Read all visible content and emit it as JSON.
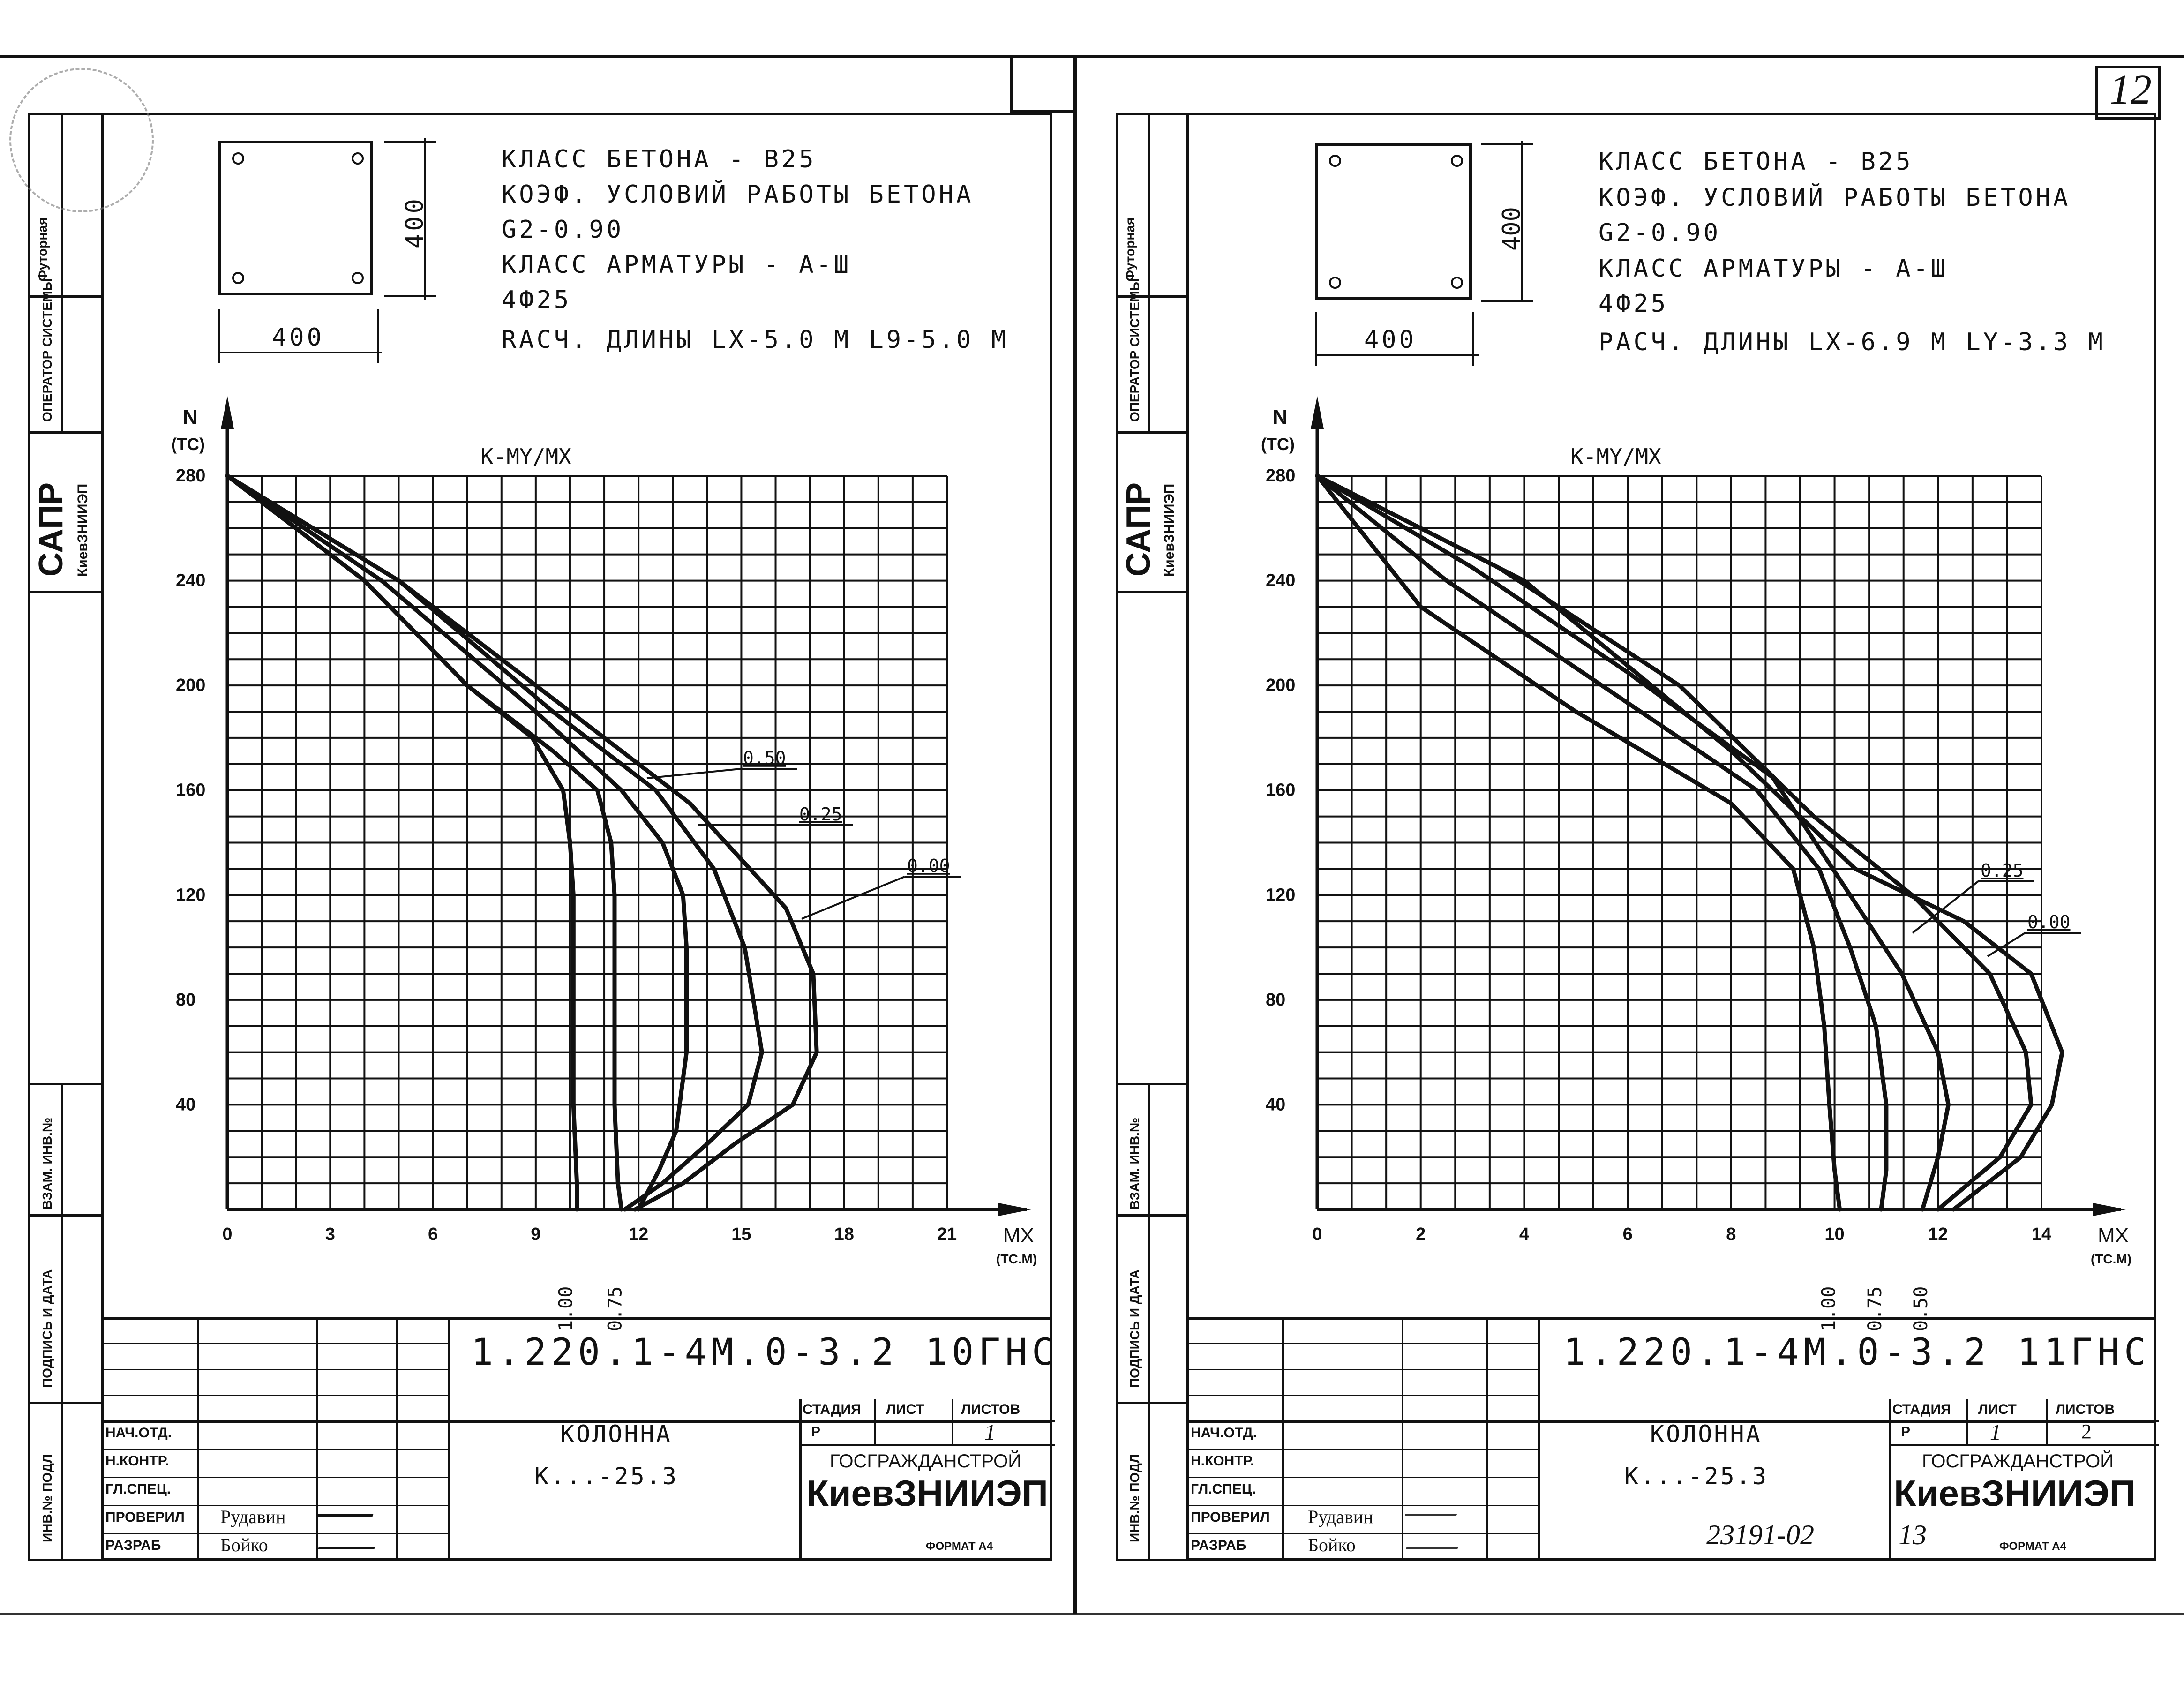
{
  "page_number": "12",
  "footer_number": "23191-02",
  "footer_page": "13",
  "format_label": "ФОРМАТ А4",
  "side_labels": {
    "futorny": "Футорная",
    "operator": "ОПЕРАТОР СИСТЕМЫ",
    "sapr": "САПР",
    "sapr_org": "КиевЗНИИЭП",
    "vzam": "ВЗАМ. ИНВ.№",
    "podpis": "ПОДПИСЬ И ДАТА",
    "inv": "ИНВ.№ ПОДЛ"
  },
  "sheets": [
    {
      "section_width": "400",
      "section_height": "400",
      "spec_lines": [
        "КЛАСС БЕТОНА - В25",
        "КОЭФ. УСЛОВИЙ РАБОТЫ БЕТОНА",
        "G2-0.90",
        "КЛАСС АРМАТУРЫ - А-Ш",
        "4Ф25",
        "RАСЧ. ДЛИНЫ  LX-5.0 M  L9-5.0 M"
      ],
      "chart_data": {
        "type": "line",
        "title": "K-MY/MX",
        "ylabel": "N",
        "yunit": "(ТС)",
        "xlabel": "MX",
        "xunit": "(ТС.М)",
        "xlim": [
          0,
          21
        ],
        "ylim": [
          0,
          280
        ],
        "xticks": [
          "0",
          "3",
          "6",
          "9",
          "12",
          "15",
          "18",
          "21"
        ],
        "yticks": [
          "40",
          "80",
          "120",
          "160",
          "200",
          "240",
          "280"
        ],
        "series": [
          {
            "name": "1.00",
            "x": [
              0,
              4,
              7,
              8.9,
              9.8,
              10,
              10.1,
              10.1,
              10.1,
              10.2,
              10.2
            ],
            "y": [
              280,
              240,
              200,
              180,
              160,
              140,
              120,
              80,
              40,
              10,
              0
            ]
          },
          {
            "name": "0.75",
            "x": [
              0,
              4,
              7,
              9.5,
              10.8,
              11.2,
              11.3,
              11.3,
              11.3,
              11.4,
              11.5
            ],
            "y": [
              280,
              240,
              200,
              175,
              160,
              140,
              120,
              80,
              40,
              10,
              0
            ]
          },
          {
            "name": "0.50",
            "x": [
              0,
              4.5,
              9,
              11.5,
              12.7,
              13.3,
              13.4,
              13.4,
              13.1,
              12.6,
              12.0
            ],
            "y": [
              280,
              240,
              190,
              160,
              140,
              120,
              100,
              60,
              30,
              15,
              0
            ]
          },
          {
            "name": "0.25",
            "x": [
              0,
              5,
              9.5,
              12.5,
              14.2,
              15.1,
              15.6,
              15.2,
              14.0,
              12.7,
              11.6
            ],
            "y": [
              280,
              240,
              190,
              160,
              130,
              100,
              60,
              40,
              25,
              10,
              0
            ]
          },
          {
            "name": "0.00",
            "x": [
              0,
              5,
              10,
              13.5,
              16.3,
              17.1,
              17.2,
              16.5,
              14.8,
              13.3,
              11.9
            ],
            "y": [
              280,
              240,
              190,
              155,
              115,
              90,
              60,
              40,
              25,
              10,
              0
            ]
          }
        ],
        "curve_labels": [
          "0.50",
          "0.25",
          "0.00"
        ],
        "bottom_labels": [
          "1.00",
          "0.75"
        ]
      },
      "stamp": {
        "code": "1.220.1-4М.0-3.2  10ГНС",
        "roles": [
          "НАЧ.ОТД.",
          "Н.КОНТР.",
          "ГЛ.СПЕЦ.",
          "ПРОВЕРИЛ",
          "РАЗРАБ"
        ],
        "names": [
          "",
          "",
          "",
          "Рудавин",
          "Бойко"
        ],
        "item_title": "КОЛОННА",
        "item_mark": "К...-25.3",
        "stage_label": "СТАДИЯ",
        "sheet_label": "ЛИСТ",
        "sheets_label": "ЛИСТОВ",
        "stage": "Р",
        "sheet": "",
        "sheets": "1",
        "org_top": "ГОСГРАЖДАНСТРОЙ",
        "org_main": "КиевЗНИИЭП"
      }
    },
    {
      "section_width": "400",
      "section_height": "400",
      "spec_lines": [
        "КЛАСС БЕТОНА - В25",
        "КОЭФ. УСЛОВИЙ РАБОТЫ БЕТОНА",
        "G2-0.90",
        "КЛАСС АРМАТУРЫ - А-Ш",
        "4Ф25",
        "РАСЧ. ДЛИНЫ  LX-6.9 M  LY-3.3 M"
      ],
      "chart_data": {
        "type": "line",
        "title": "K-MY/MX",
        "ylabel": "N",
        "yunit": "(ТС)",
        "xlabel": "MX",
        "xunit": "(ТС.М)",
        "xlim": [
          0,
          14
        ],
        "ylim": [
          0,
          280
        ],
        "xticks": [
          "0",
          "2",
          "4",
          "6",
          "8",
          "10",
          "12",
          "14"
        ],
        "yticks": [
          "40",
          "80",
          "120",
          "160",
          "200",
          "240",
          "280"
        ],
        "series": [
          {
            "name": "1.00",
            "x": [
              0,
              2,
              5,
              8,
              9.2,
              9.6,
              9.8,
              9.9,
              10.0,
              10.1
            ],
            "y": [
              280,
              230,
              190,
              155,
              130,
              100,
              70,
              40,
              15,
              0
            ]
          },
          {
            "name": "0.75",
            "x": [
              0,
              2.5,
              5.5,
              8.5,
              9.7,
              10.3,
              10.8,
              11.0,
              11.0,
              10.9
            ],
            "y": [
              280,
              240,
              200,
              160,
              130,
              100,
              70,
              40,
              15,
              0
            ]
          },
          {
            "name": "0.50",
            "x": [
              0,
              3,
              6,
              8.8,
              10.3,
              11.3,
              12.0,
              12.2,
              12.0,
              11.7
            ],
            "y": [
              280,
              245,
              205,
              165,
              120,
              90,
              60,
              40,
              20,
              0
            ]
          },
          {
            "name": "0.25",
            "x": [
              0,
              3.5,
              7,
              9.6,
              11.5,
              13.0,
              13.7,
              13.8,
              13.2,
              12.0
            ],
            "y": [
              280,
              245,
              200,
              150,
              120,
              90,
              60,
              40,
              20,
              0
            ]
          },
          {
            "name": "0.00",
            "x": [
              0,
              4,
              8,
              10.4,
              12.5,
              13.8,
              14.4,
              14.2,
              13.6,
              12.3
            ],
            "y": [
              280,
              240,
              175,
              130,
              110,
              90,
              60,
              40,
              20,
              0
            ]
          }
        ],
        "curve_labels": [
          "0.25",
          "0.00"
        ],
        "bottom_labels": [
          "1.00",
          "0.75",
          "0.50"
        ]
      },
      "stamp": {
        "code": "1.220.1-4М.0-3.2  11ГНС",
        "roles": [
          "НАЧ.ОТД.",
          "Н.КОНТР.",
          "ГЛ.СПЕЦ.",
          "ПРОВЕРИЛ",
          "РАЗРАБ"
        ],
        "names": [
          "",
          "",
          "",
          "Рудавин",
          "Бойко"
        ],
        "item_title": "КОЛОННА",
        "item_mark": "К...-25.3",
        "stage_label": "СТАДИЯ",
        "sheet_label": "ЛИСТ",
        "sheets_label": "ЛИСТОВ",
        "stage": "Р",
        "sheet": "1",
        "sheets": "2",
        "org_top": "ГОСГРАЖДАНСТРОЙ",
        "org_main": "КиевЗНИИЭП"
      }
    }
  ]
}
